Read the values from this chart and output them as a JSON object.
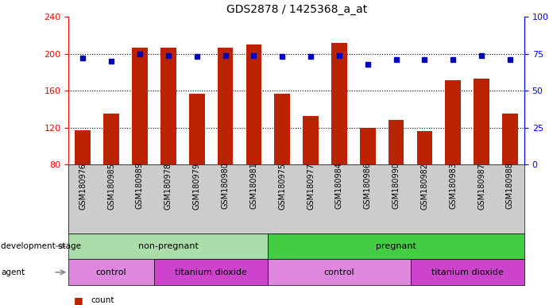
{
  "title": "GDS2878 / 1425368_a_at",
  "samples": [
    "GSM180976",
    "GSM180985",
    "GSM180989",
    "GSM180978",
    "GSM180979",
    "GSM180980",
    "GSM180981",
    "GSM180975",
    "GSM180977",
    "GSM180984",
    "GSM180986",
    "GSM180990",
    "GSM180982",
    "GSM180983",
    "GSM180987",
    "GSM180988"
  ],
  "counts": [
    117,
    135,
    207,
    207,
    157,
    207,
    210,
    157,
    133,
    212,
    120,
    128,
    116,
    171,
    173,
    135
  ],
  "percentile_ranks": [
    72,
    70,
    75,
    74,
    73,
    74,
    74,
    73,
    73,
    74,
    68,
    71,
    71,
    71,
    74,
    71
  ],
  "ylim_left": [
    80,
    240
  ],
  "ylim_right": [
    0,
    100
  ],
  "yticks_left": [
    80,
    120,
    160,
    200,
    240
  ],
  "yticks_right": [
    0,
    25,
    50,
    75,
    100
  ],
  "bar_color": "#bb2200",
  "dot_color": "#0000bb",
  "bar_bottom": 80,
  "groups": {
    "development_stage": [
      {
        "label": "non-pregnant",
        "start": 0,
        "end": 7,
        "color": "#aaddaa"
      },
      {
        "label": "pregnant",
        "start": 7,
        "end": 16,
        "color": "#44cc44"
      }
    ],
    "agent": [
      {
        "label": "control",
        "start": 0,
        "end": 3,
        "color": "#dd88dd"
      },
      {
        "label": "titanium dioxide",
        "start": 3,
        "end": 7,
        "color": "#cc44cc"
      },
      {
        "label": "control",
        "start": 7,
        "end": 12,
        "color": "#dd88dd"
      },
      {
        "label": "titanium dioxide",
        "start": 12,
        "end": 16,
        "color": "#cc44cc"
      }
    ]
  },
  "tick_bg_color": "#cccccc",
  "bg_color": "#ffffff",
  "grid_dotted_color": "black",
  "left_axis_color": "red",
  "right_axis_color": "blue"
}
